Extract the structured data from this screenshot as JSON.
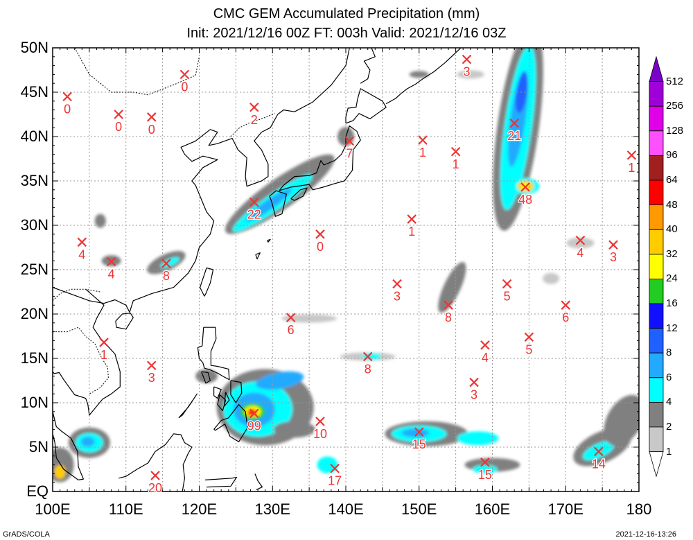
{
  "title": {
    "line1": "CMC GEM Accumulated Precipitation (mm)",
    "line2": "Init: 2021/12/16 00Z  FT: 003h  Valid: 2021/12/16 03Z"
  },
  "axes": {
    "lat_labels": [
      "50N",
      "45N",
      "40N",
      "35N",
      "30N",
      "25N",
      "20N",
      "15N",
      "10N",
      "5N",
      "EQ"
    ],
    "lon_labels": [
      "100E",
      "110E",
      "120E",
      "130E",
      "140E",
      "150E",
      "160E",
      "170E",
      "180"
    ]
  },
  "colorbar": {
    "levels": [
      "512",
      "256",
      "128",
      "96",
      "64",
      "48",
      "40",
      "32",
      "24",
      "16",
      "12",
      "8",
      "6",
      "4",
      "2",
      "1"
    ],
    "colors": [
      "#7b00c8",
      "#a000d8",
      "#e000e8",
      "#ff50ff",
      "#a02020",
      "#ff0000",
      "#ff9900",
      "#ffcc00",
      "#ffff00",
      "#22cc22",
      "#1010ff",
      "#2060ff",
      "#22aaff",
      "#00ffff",
      "#808080",
      "#c8c8c8",
      "#ffffff"
    ]
  },
  "markers": [
    {
      "lon": 102,
      "lat": 44.5,
      "value": "0"
    },
    {
      "lon": 109,
      "lat": 42.5,
      "value": "0"
    },
    {
      "lon": 113.5,
      "lat": 42.2,
      "value": "0"
    },
    {
      "lon": 118,
      "lat": 47,
      "value": "0"
    },
    {
      "lon": 127.5,
      "lat": 43.3,
      "value": "2"
    },
    {
      "lon": 156.5,
      "lat": 48.7,
      "value": "3"
    },
    {
      "lon": 140.5,
      "lat": 39.5,
      "value": "7"
    },
    {
      "lon": 150.5,
      "lat": 39.6,
      "value": "1"
    },
    {
      "lon": 155,
      "lat": 38.3,
      "value": "1"
    },
    {
      "lon": 163,
      "lat": 41.5,
      "value": "21"
    },
    {
      "lon": 179,
      "lat": 37.9,
      "value": "1"
    },
    {
      "lon": 164.5,
      "lat": 34.3,
      "value": "48"
    },
    {
      "lon": 127.5,
      "lat": 32.6,
      "value": "22"
    },
    {
      "lon": 136.5,
      "lat": 29,
      "value": "0"
    },
    {
      "lon": 149,
      "lat": 30.7,
      "value": "1"
    },
    {
      "lon": 104,
      "lat": 28.1,
      "value": "4"
    },
    {
      "lon": 108,
      "lat": 25.9,
      "value": "4"
    },
    {
      "lon": 115.5,
      "lat": 25.7,
      "value": "8"
    },
    {
      "lon": 172,
      "lat": 28.3,
      "value": "4"
    },
    {
      "lon": 176.5,
      "lat": 27.8,
      "value": "3"
    },
    {
      "lon": 147,
      "lat": 23.4,
      "value": "3"
    },
    {
      "lon": 162,
      "lat": 23.4,
      "value": "5"
    },
    {
      "lon": 154,
      "lat": 21,
      "value": "8"
    },
    {
      "lon": 170,
      "lat": 21,
      "value": "6"
    },
    {
      "lon": 132.5,
      "lat": 19.6,
      "value": "6"
    },
    {
      "lon": 107,
      "lat": 16.8,
      "value": "1"
    },
    {
      "lon": 159,
      "lat": 16.5,
      "value": "4"
    },
    {
      "lon": 165,
      "lat": 17.4,
      "value": "5"
    },
    {
      "lon": 113.5,
      "lat": 14.2,
      "value": "3"
    },
    {
      "lon": 143,
      "lat": 15.2,
      "value": "8"
    },
    {
      "lon": 157.5,
      "lat": 12.3,
      "value": "3"
    },
    {
      "lon": 127.5,
      "lat": 8.8,
      "value": "99"
    },
    {
      "lon": 136.5,
      "lat": 7.9,
      "value": "10"
    },
    {
      "lon": 150,
      "lat": 6.7,
      "value": "15"
    },
    {
      "lon": 174.5,
      "lat": 4.5,
      "value": "14"
    },
    {
      "lon": 159,
      "lat": 3.3,
      "value": "15"
    },
    {
      "lon": 138.5,
      "lat": 2.6,
      "value": "17"
    },
    {
      "lon": 114,
      "lat": 1.8,
      "value": "20"
    }
  ],
  "footer": {
    "left": "GrADS/COLA",
    "right": "2021-12-16-13:26"
  }
}
